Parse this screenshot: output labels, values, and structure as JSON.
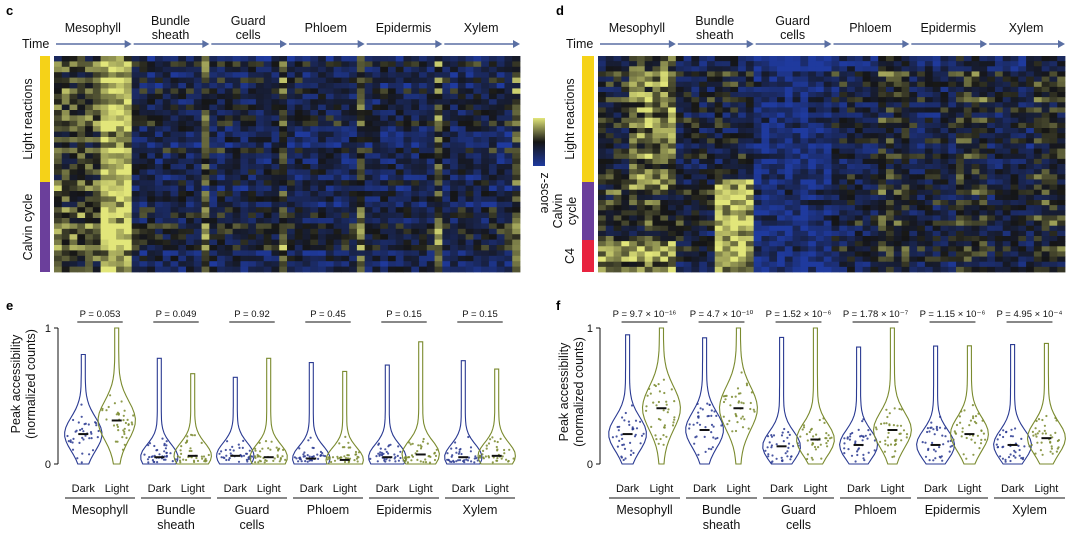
{
  "cell_types": [
    "Mesophyll",
    "Bundle sheath",
    "Guard cells",
    "Phloem",
    "Epidermis",
    "Xylem"
  ],
  "colors": {
    "heat_low": "#1f3a9e",
    "heat_mid": "#151515",
    "heat_high": "#e2e67a",
    "light_reactions": "#f5d218",
    "calvin_cycle": "#6b3f9b",
    "c4": "#e8233f",
    "dark_violin": "#2a3a92",
    "light_violin": "#7a8a2e",
    "axis_arrow": "#5a6fa3"
  },
  "panel_c": {
    "label": "c",
    "time_label": "Time",
    "groups": [
      {
        "name": "Light reactions"
      },
      {
        "name": "Calvin cycle"
      }
    ]
  },
  "panel_d": {
    "label": "d",
    "time_label": "Time",
    "groups": [
      {
        "name": "Light reactions"
      },
      {
        "name": "Calvin cycle"
      },
      {
        "name": "C4"
      }
    ]
  },
  "colorbar": {
    "label": "z-score"
  },
  "panel_e": {
    "label": "e",
    "ylabel_1": "Peak accessibility",
    "ylabel_2": "(normalized counts)",
    "yticks": [
      "0",
      "1"
    ],
    "conditions": [
      "Dark",
      "Light"
    ],
    "pvalues": [
      "P = 0.053",
      "P = 0.049",
      "P = 0.92",
      "P = 0.45",
      "P = 0.15",
      "P = 0.15"
    ]
  },
  "panel_f": {
    "label": "f",
    "ylabel_1": "Peak accessibility",
    "ylabel_2": "(normalized counts)",
    "yticks": [
      "0",
      "1"
    ],
    "conditions": [
      "Dark",
      "Light"
    ],
    "pvalues": [
      "P = 9.7 × 10⁻¹⁶",
      "P = 4.7 × 10⁻¹⁰",
      "P = 1.52 × 10⁻⁶",
      "P = 1.78 × 10⁻⁷",
      "P = 1.15 × 10⁻⁶",
      "P = 4.95 × 10⁻⁴"
    ]
  },
  "chart_data": [
    {
      "type": "heatmap",
      "title": "",
      "columns": [
        "Mesophyll",
        "Bundle sheath",
        "Guard cells",
        "Phloem",
        "Epidermis",
        "Xylem"
      ],
      "rows": [
        "Light reactions",
        "Calvin cycle"
      ],
      "value_label": "z-score"
    },
    {
      "type": "heatmap",
      "title": "",
      "columns": [
        "Mesophyll",
        "Bundle sheath",
        "Guard cells",
        "Phloem",
        "Epidermis",
        "Xylem"
      ],
      "rows": [
        "Light reactions",
        "Calvin cycle",
        "C4"
      ],
      "value_label": "z-score"
    },
    {
      "type": "violin",
      "categories": [
        "Mesophyll",
        "Bundle sheath",
        "Guard cells",
        "Phloem",
        "Epidermis",
        "Xylem"
      ],
      "ylim": [
        0,
        1
      ],
      "series": [
        {
          "name": "Dark",
          "medians": [
            0.22,
            0.05,
            0.06,
            0.04,
            0.05,
            0.05
          ]
        },
        {
          "name": "Light",
          "medians": [
            0.32,
            0.06,
            0.05,
            0.03,
            0.07,
            0.06
          ]
        }
      ],
      "pvalues": [
        "0.053",
        "0.049",
        "0.92",
        "0.45",
        "0.15",
        "0.15"
      ]
    },
    {
      "type": "violin",
      "categories": [
        "Mesophyll",
        "Bundle sheath",
        "Guard cells",
        "Phloem",
        "Epidermis",
        "Xylem"
      ],
      "ylim": [
        0,
        1
      ],
      "series": [
        {
          "name": "Dark",
          "medians": [
            0.22,
            0.25,
            0.13,
            0.14,
            0.14,
            0.14
          ]
        },
        {
          "name": "Light",
          "medians": [
            0.41,
            0.41,
            0.18,
            0.25,
            0.22,
            0.19
          ]
        }
      ],
      "pvalues": [
        "9.7 × 10⁻¹⁶",
        "4.7 × 10⁻¹⁰",
        "1.52 × 10⁻⁶",
        "1.78 × 10⁻⁷",
        "1.15 × 10⁻⁶",
        "4.95 × 10⁻⁴"
      ]
    }
  ]
}
